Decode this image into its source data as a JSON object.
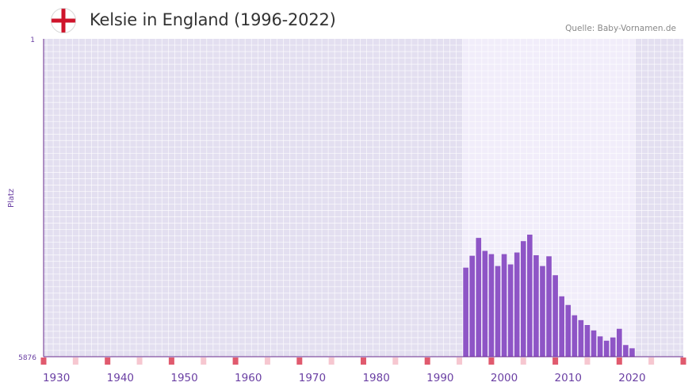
{
  "header": {
    "title": "Kelsie in England (1996-2022)",
    "source": "Quelle: Baby-Vornamen.de",
    "flag_icon": "england-flag-icon"
  },
  "colors": {
    "bar": "#8e55c6",
    "plot_bg": "#e3dff0",
    "highlight_bg": "#f1edfa",
    "axis": "#6a2b8e",
    "tick_text": "#6a3fa3",
    "decade_marker": "#e05a6e",
    "mid_marker": "#f6c7d0",
    "flag_red": "#cf142b"
  },
  "chart_data": {
    "type": "bar",
    "title": "Kelsie in England (1996-2022)",
    "xlabel": "",
    "ylabel": "Platz",
    "y_inverted": true,
    "ylim": [
      1,
      5876
    ],
    "y_ticks": [
      1,
      5876
    ],
    "xlim": [
      1928,
      2028
    ],
    "x_ticks": [
      1930,
      1940,
      1950,
      1960,
      1970,
      1980,
      1990,
      2000,
      2010,
      2020
    ],
    "highlight_range": [
      1994,
      2020
    ],
    "x": [
      1994,
      1995,
      1996,
      1997,
      1998,
      1999,
      2000,
      2001,
      2002,
      2003,
      2004,
      2005,
      2006,
      2007,
      2008,
      2009,
      2010,
      2011,
      2012,
      2013,
      2014,
      2015,
      2016,
      2017,
      2018,
      2019,
      2020
    ],
    "values": [
      4230,
      4010,
      3680,
      3920,
      3980,
      4200,
      3980,
      4170,
      3950,
      3740,
      3620,
      4000,
      4200,
      4020,
      4370,
      4760,
      4920,
      5110,
      5200,
      5290,
      5390,
      5500,
      5580,
      5520,
      5360,
      5660,
      5720
    ]
  }
}
